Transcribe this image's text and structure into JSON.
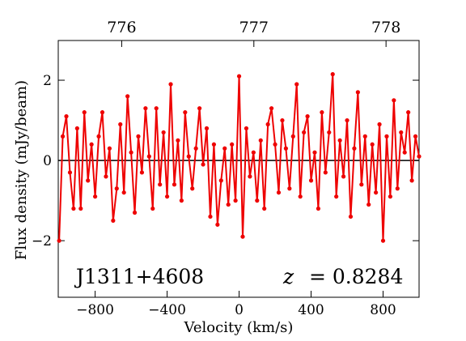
{
  "chart_data": {
    "type": "line",
    "xlabel": "Velocity (km/s)",
    "ylabel": "Flux density (mJy/beam)",
    "annotations": [
      "J1311+4608",
      "z",
      "= 0.8284"
    ],
    "x": [
      -1000,
      -980,
      -960,
      -940,
      -920,
      -900,
      -880,
      -860,
      -840,
      -820,
      -800,
      -780,
      -760,
      -740,
      -720,
      -700,
      -680,
      -660,
      -640,
      -620,
      -600,
      -580,
      -560,
      -540,
      -520,
      -500,
      -480,
      -460,
      -440,
      -420,
      -400,
      -380,
      -360,
      -340,
      -320,
      -300,
      -280,
      -260,
      -240,
      -220,
      -200,
      -180,
      -160,
      -140,
      -120,
      -100,
      -80,
      -60,
      -40,
      -20,
      0,
      20,
      40,
      60,
      80,
      100,
      120,
      140,
      160,
      180,
      200,
      220,
      240,
      260,
      280,
      300,
      320,
      340,
      360,
      380,
      400,
      420,
      440,
      460,
      480,
      500,
      520,
      540,
      560,
      580,
      600,
      620,
      640,
      660,
      680,
      700,
      720,
      740,
      760,
      780,
      800,
      820,
      840,
      860,
      880,
      900,
      920,
      940,
      960,
      980,
      1000
    ],
    "series": [
      {
        "color": "#ee0000",
        "values": [
          -2.0,
          0.6,
          1.1,
          -0.3,
          -1.2,
          0.8,
          -1.2,
          1.2,
          -0.5,
          0.4,
          -0.9,
          0.6,
          1.2,
          -0.4,
          0.3,
          -1.5,
          -0.7,
          0.9,
          -0.8,
          1.6,
          0.2,
          -1.3,
          0.6,
          -0.3,
          1.3,
          0.1,
          -1.2,
          1.3,
          -0.6,
          0.7,
          -0.9,
          1.9,
          -0.6,
          0.5,
          -1.0,
          1.2,
          0.1,
          -0.7,
          0.3,
          1.3,
          -0.1,
          0.8,
          -1.4,
          0.4,
          -1.6,
          -0.5,
          0.3,
          -1.1,
          0.4,
          -1.0,
          2.1,
          -1.9,
          0.8,
          -0.4,
          0.2,
          -1.0,
          0.5,
          -1.2,
          0.9,
          1.3,
          0.4,
          -0.8,
          1.0,
          0.3,
          -0.7,
          0.6,
          1.9,
          -0.9,
          0.7,
          1.1,
          -0.5,
          0.2,
          -1.2,
          1.2,
          -0.3,
          0.7,
          2.15,
          -0.9,
          0.5,
          -0.4,
          1.0,
          -1.4,
          0.3,
          1.7,
          -0.6,
          0.6,
          -1.1,
          0.4,
          -0.8,
          0.9,
          -2.0,
          0.6,
          -0.9,
          1.5,
          -0.7,
          0.7,
          0.2,
          1.2,
          -0.5,
          0.6,
          0.1
        ]
      }
    ],
    "hline": 0,
    "xlim": [
      -1005,
      1000
    ],
    "xticks": [
      {
        "value": -800,
        "label": "−800"
      },
      {
        "value": -400,
        "label": "−400"
      },
      0,
      400,
      800
    ],
    "x2lim": [
      775.52,
      778.25
    ],
    "x2ticks": [
      776,
      777,
      778
    ],
    "ylim": [
      -3.41,
      2.99
    ],
    "yticks": [
      {
        "value": -2,
        "label": "−2"
      },
      0,
      2
    ]
  }
}
